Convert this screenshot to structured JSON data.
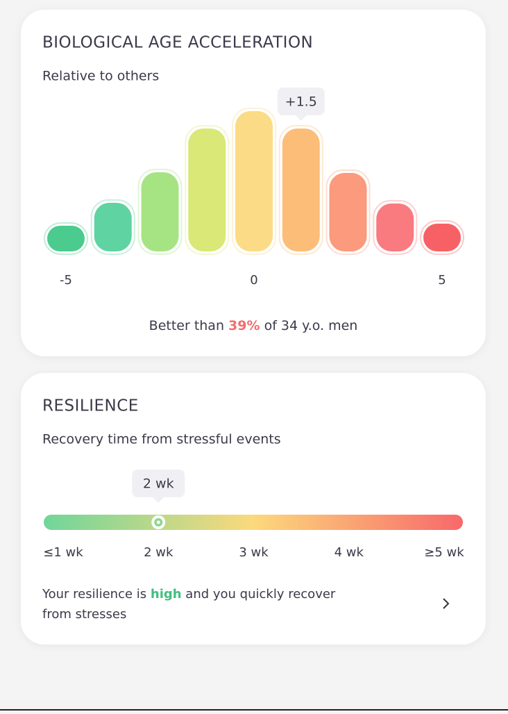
{
  "age_card": {
    "title": "BIOLOGICAL AGE ACCELERATION",
    "subtitle": "Relative to others",
    "chart_data": {
      "type": "bar",
      "x": [
        -5,
        -3.75,
        -2.5,
        -1.25,
        0,
        1.25,
        2.5,
        3.75,
        5
      ],
      "values": [
        37,
        70,
        114,
        177,
        202,
        177,
        113,
        69,
        40
      ],
      "colors": [
        "#4ccb8f",
        "#5fd3a2",
        "#a6e483",
        "#d9e877",
        "#fbdb85",
        "#fbbd78",
        "#fb9a7c",
        "#f97a7f",
        "#f76165"
      ],
      "xlim": [
        -5,
        5
      ],
      "xticks": [
        -5,
        0,
        5
      ],
      "ylim": [
        0,
        210
      ],
      "annotation": {
        "x": 1.25,
        "label": "+1.5"
      }
    },
    "summary": {
      "prefix": "Better than ",
      "highlight": "39%",
      "suffix": " of 34 y.o. men"
    }
  },
  "resilience_card": {
    "title": "RESILIENCE",
    "subtitle": "Recovery time from stressful events",
    "scale_labels": [
      "≤1 wk",
      "2 wk",
      "3 wk",
      "4 wk",
      "≥5 wk"
    ],
    "marker_label": "2 wk",
    "selected_index": 1,
    "description": {
      "prefix": "Your resilience is ",
      "highlight": "high",
      "suffix": " and you quickly recover",
      "line2": "from stresses"
    }
  }
}
